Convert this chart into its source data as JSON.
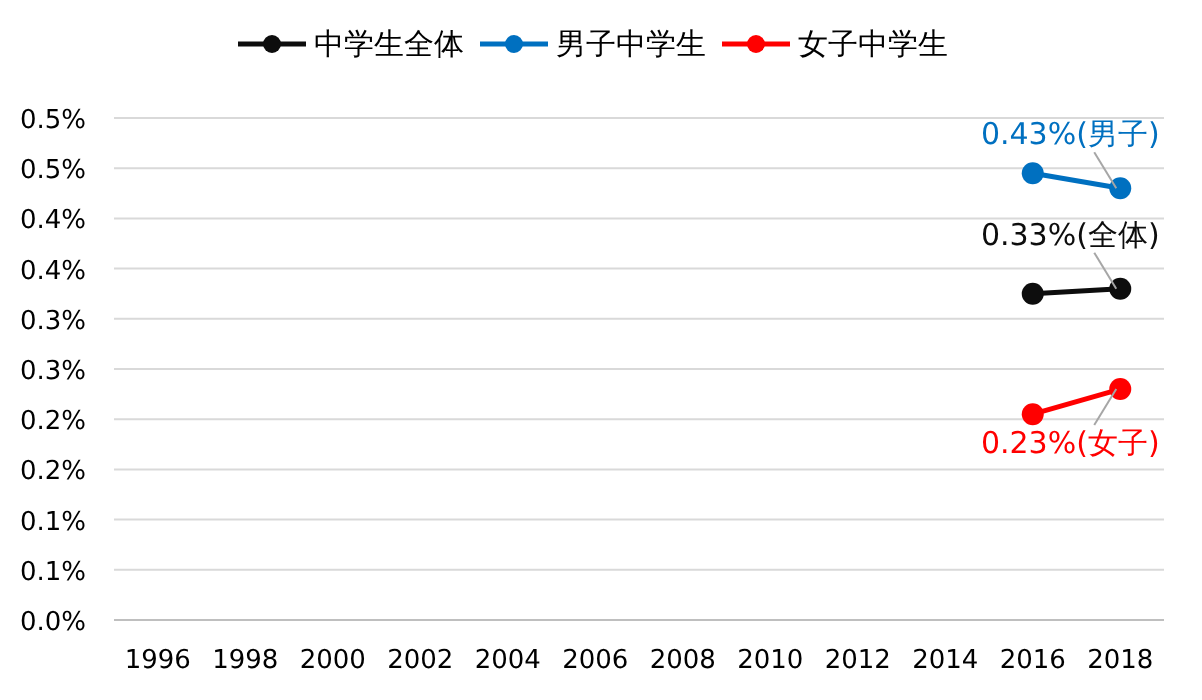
{
  "chart_data": {
    "type": "line",
    "categories": [
      "1996",
      "1998",
      "2000",
      "2002",
      "2004",
      "2006",
      "2008",
      "2010",
      "2012",
      "2014",
      "2016",
      "2018"
    ],
    "series": [
      {
        "name": "中学生全体",
        "color": "#0d0d0d",
        "values": [
          null,
          null,
          null,
          null,
          null,
          null,
          null,
          null,
          null,
          null,
          0.325,
          0.33
        ]
      },
      {
        "name": "男子中学生",
        "color": "#0070c0",
        "values": [
          null,
          null,
          null,
          null,
          null,
          null,
          null,
          null,
          null,
          null,
          0.445,
          0.43
        ]
      },
      {
        "name": "女子中学生",
        "color": "#ff0000",
        "values": [
          null,
          null,
          null,
          null,
          null,
          null,
          null,
          null,
          null,
          null,
          0.205,
          0.23
        ]
      }
    ],
    "annotations": [
      {
        "text": "0.43%(男子)",
        "x": "2018",
        "y": 0.43
      },
      {
        "text": "0.33%(全体)",
        "x": "2018",
        "y": 0.33
      },
      {
        "text": "0.23%(女子)",
        "x": "2018",
        "y": 0.23
      }
    ],
    "ylim": [
      0,
      0.5
    ],
    "yticks": [
      {
        "value": 0,
        "label": "0.0%"
      },
      {
        "value": 0.05,
        "label": "0.1%"
      },
      {
        "value": 0.1,
        "label": "0.1%"
      },
      {
        "value": 0.15,
        "label": "0.2%"
      },
      {
        "value": 0.2,
        "label": "0.2%"
      },
      {
        "value": 0.25,
        "label": "0.3%"
      },
      {
        "value": 0.3,
        "label": "0.3%"
      },
      {
        "value": 0.35,
        "label": "0.4%"
      },
      {
        "value": 0.4,
        "label": "0.4%"
      },
      {
        "value": 0.45,
        "label": "0.5%"
      },
      {
        "value": 0.5,
        "label": "0.5%"
      }
    ],
    "grid": "y",
    "legend": "top",
    "marker": "circle"
  }
}
